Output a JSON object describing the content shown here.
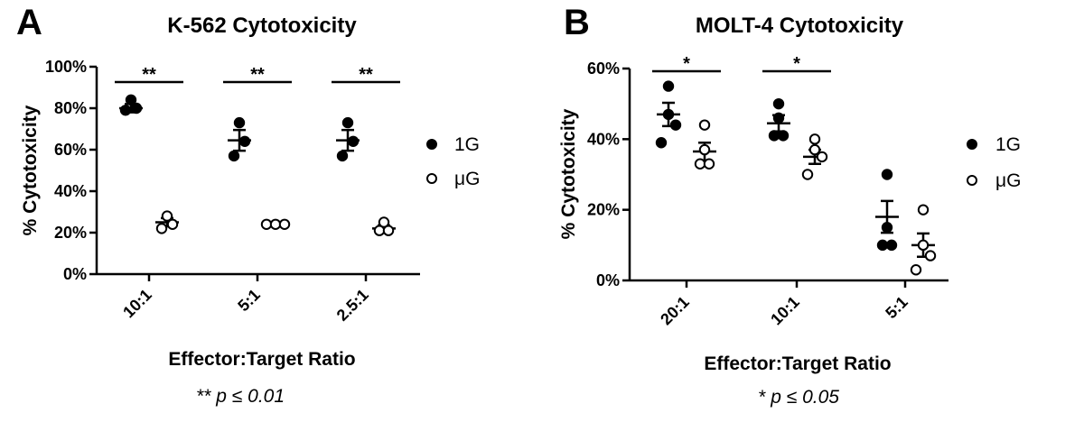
{
  "chart_data": [
    {
      "type": "scatter",
      "panel_label": "A",
      "title": "K-562 Cytotoxicity",
      "xlabel": "Effector:Target Ratio",
      "ylabel": "% Cytotoxicity",
      "categories": [
        "10:1",
        "5:1",
        "2.5:1"
      ],
      "ylim": [
        0,
        100
      ],
      "yticks": [
        "0%",
        "20%",
        "40%",
        "60%",
        "80%",
        "100%"
      ],
      "series": [
        {
          "name": "1G",
          "marker": "filled-circle",
          "points": [
            [
              79,
              80,
              84
            ],
            [
              57,
              64,
              73
            ],
            [
              57,
              64,
              73
            ]
          ],
          "mean": [
            80,
            64.5,
            64.5
          ],
          "sem": [
            2,
            5,
            5
          ]
        },
        {
          "name": "μG",
          "marker": "open-circle",
          "points": [
            [
              22,
              24,
              28
            ],
            [
              24,
              24,
              24
            ],
            [
              21,
              21,
              25
            ]
          ],
          "mean": [
            25,
            24,
            22
          ],
          "sem": [
            2,
            0.5,
            1.5
          ]
        }
      ],
      "significance": [
        "**",
        "**",
        "**"
      ],
      "footnote_mark": "**",
      "footnote_text": "p ≤ 0.01",
      "legend_position": "right"
    },
    {
      "type": "scatter",
      "panel_label": "B",
      "title": "MOLT-4 Cytotoxicity",
      "xlabel": "Effector:Target Ratio",
      "ylabel": "% Cytotoxicity",
      "categories": [
        "20:1",
        "10:1",
        "5:1"
      ],
      "ylim": [
        0,
        60
      ],
      "yticks": [
        "0%",
        "20%",
        "40%",
        "60%"
      ],
      "series": [
        {
          "name": "1G",
          "marker": "filled-circle",
          "points": [
            [
              39,
              44,
              47,
              55
            ],
            [
              41,
              41,
              46,
              50
            ],
            [
              10,
              10,
              15,
              30
            ]
          ],
          "mean": [
            47,
            44.5,
            18
          ],
          "sem": [
            3.3,
            2.3,
            4.5
          ]
        },
        {
          "name": "μG",
          "marker": "open-circle",
          "points": [
            [
              33,
              33,
              37,
              44
            ],
            [
              30,
              35,
              37,
              40
            ],
            [
              3,
              7,
              10,
              20
            ]
          ],
          "mean": [
            36.5,
            35,
            10
          ],
          "sem": [
            2.5,
            2,
            3.3
          ]
        }
      ],
      "significance": [
        "*",
        "*",
        ""
      ],
      "footnote_mark": "*",
      "footnote_text": "p ≤ 0.05",
      "legend_position": "right"
    }
  ]
}
